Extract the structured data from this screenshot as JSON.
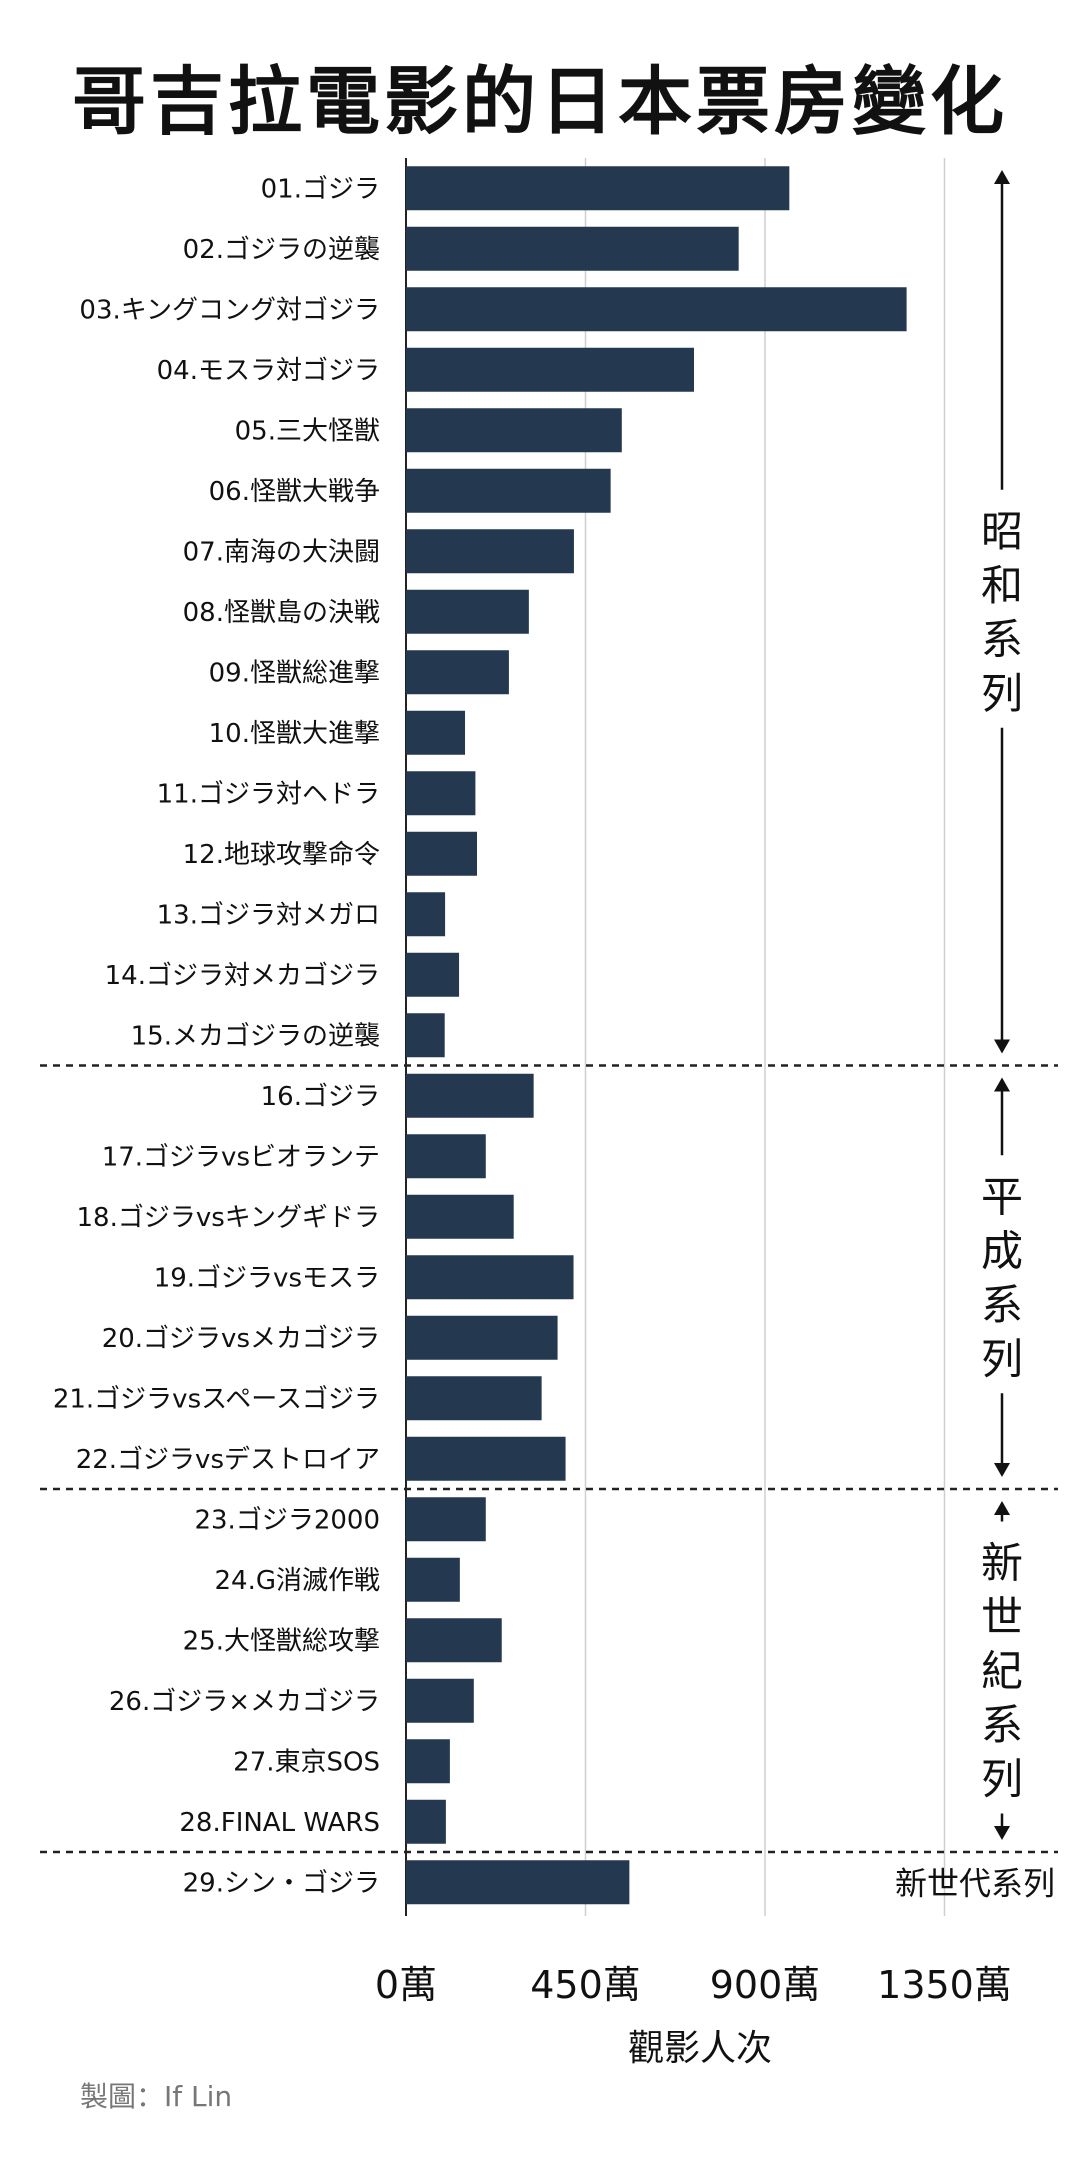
{
  "chart_data": {
    "type": "bar",
    "orientation": "horizontal",
    "title": "哥吉拉電影的日本票房變化",
    "xlabel": "觀影人次",
    "ylabel": "",
    "xlim": [
      0,
      1530
    ],
    "ticks": [
      0,
      450,
      900,
      1350
    ],
    "tick_labels": [
      "0萬",
      "450萬",
      "900萬",
      "1350萬"
    ],
    "unit": "萬",
    "bar_color": "#24394f",
    "grid_color": "#cfcfcf",
    "categories": [
      "01.ゴジラ",
      "02.ゴジラの逆襲",
      "03.キングコング対ゴジラ",
      "04.モスラ対ゴジラ",
      "05.三大怪獣",
      "06.怪獣大戦争",
      "07.南海の大決闘",
      "08.怪獣島の決戦",
      "09.怪獣総進撃",
      "10.怪獣大進撃",
      "11.ゴジラ対ヘドラ",
      "12.地球攻撃命令",
      "13.ゴジラ対メガロ",
      "14.ゴジラ対メカゴジラ",
      "15.メカゴジラの逆襲",
      "16.ゴジラ",
      "17.ゴジラvsビオランテ",
      "18.ゴジラvsキングギドラ",
      "19.ゴジラvsモスラ",
      "20.ゴジラvsメカゴジラ",
      "21.ゴジラvsスペースゴジラ",
      "22.ゴジラvsデストロイア",
      "23.ゴジラ2000",
      "24.G消滅作戦",
      "25.大怪獣総攻撃",
      "26.ゴジラ×メカゴジラ",
      "27.東京SOS",
      "28.FINAL WARS",
      "29.シン・ゴジラ"
    ],
    "values": [
      961,
      834,
      1255,
      722,
      541,
      513,
      421,
      308,
      258,
      148,
      174,
      178,
      98,
      133,
      97,
      320,
      200,
      270,
      420,
      380,
      340,
      400,
      200,
      135,
      240,
      170,
      110,
      100,
      560
    ],
    "groups": [
      {
        "label": "昭和系列",
        "start": 0,
        "end": 14
      },
      {
        "label": "平成系列",
        "start": 15,
        "end": 21
      },
      {
        "label": "新世紀系列",
        "start": 22,
        "end": 27
      },
      {
        "label": "新世代系列",
        "start": 28,
        "end": 28
      }
    ]
  },
  "credit": "製圖：If Lin"
}
